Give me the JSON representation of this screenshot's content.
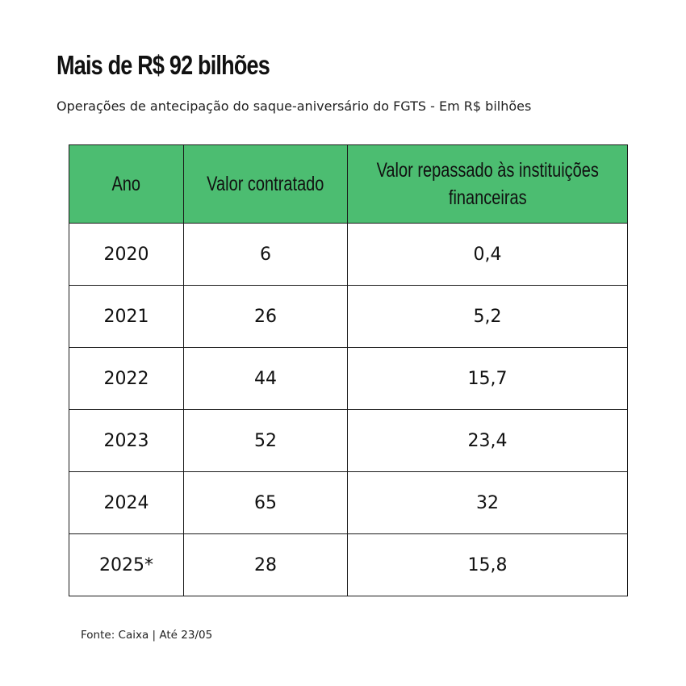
{
  "title": "Mais de R$ 92 bilhões",
  "subtitle": "Operações de antecipação do saque-aniversário do FGTS - Em R$ bilhões",
  "source": "Fonte: Caixa | Até 23/05",
  "colors": {
    "header_bg": "#4cbd71",
    "border": "#1a1a1a",
    "text": "#111111"
  },
  "chart_data": {
    "type": "table",
    "title": "Mais de R$ 92 bilhões",
    "subtitle": "Operações de antecipação do saque-aniversário do FGTS - Em R$ bilhões",
    "columns": [
      "Ano",
      "Valor contratado",
      "Valor repassado às instituições financeiras"
    ],
    "rows": [
      [
        "2020",
        "6",
        "0,4"
      ],
      [
        "2021",
        "26",
        "5,2"
      ],
      [
        "2022",
        "44",
        "15,7"
      ],
      [
        "2023",
        "52",
        "23,4"
      ],
      [
        "2024",
        "65",
        "32"
      ],
      [
        "2025*",
        "28",
        "15,8"
      ]
    ]
  }
}
